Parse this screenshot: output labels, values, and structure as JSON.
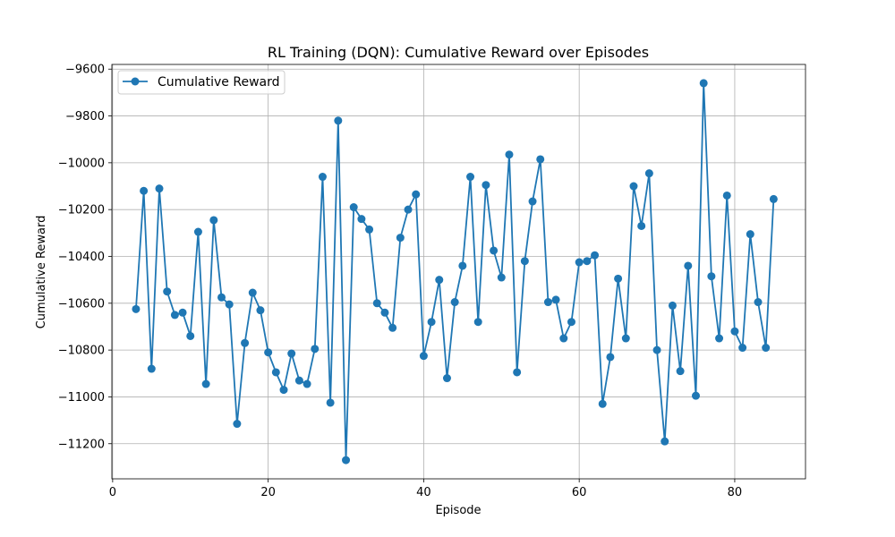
{
  "chart_data": {
    "type": "line",
    "title": "RL Training (DQN): Cumulative Reward over Episodes",
    "xlabel": "Episode",
    "ylabel": "Cumulative Reward",
    "xlim": [
      -0.1,
      89.1
    ],
    "ylim": [
      -11350,
      -9580
    ],
    "xticks": [
      0,
      20,
      40,
      60,
      80
    ],
    "yticks": [
      -11200,
      -11000,
      -10800,
      -10600,
      -10400,
      -10200,
      -10000,
      -9800,
      -9600
    ],
    "grid": true,
    "legend_position": "top-left",
    "series": [
      {
        "name": "Cumulative Reward",
        "color": "#1f77b4",
        "marker": "circle",
        "x": [
          3,
          4,
          5,
          6,
          7,
          8,
          9,
          10,
          11,
          12,
          13,
          14,
          15,
          16,
          17,
          18,
          19,
          20,
          21,
          22,
          23,
          24,
          25,
          26,
          27,
          28,
          29,
          30,
          31,
          32,
          33,
          34,
          35,
          36,
          37,
          38,
          39,
          40,
          41,
          42,
          43,
          44,
          45,
          46,
          47,
          48,
          49,
          50,
          51,
          52,
          53,
          54,
          55,
          56,
          57,
          58,
          59,
          60,
          61,
          62,
          63,
          64,
          65,
          66,
          67,
          68,
          69,
          70,
          71,
          72,
          73,
          74,
          75,
          76,
          77,
          78,
          79,
          80,
          81,
          82,
          83,
          84,
          85
        ],
        "y": [
          -10625,
          -10120,
          -10880,
          -10110,
          -10550,
          -10650,
          -10640,
          -10740,
          -10295,
          -10945,
          -10245,
          -10575,
          -10605,
          -11115,
          -10770,
          -10555,
          -10630,
          -10810,
          -10895,
          -10970,
          -10815,
          -10930,
          -10945,
          -10795,
          -10060,
          -11025,
          -9820,
          -11270,
          -10190,
          -10240,
          -10285,
          -10600,
          -10640,
          -10705,
          -10320,
          -10200,
          -10135,
          -10825,
          -10680,
          -10500,
          -10920,
          -10595,
          -10440,
          -10060,
          -10680,
          -10095,
          -10375,
          -10490,
          -9965,
          -10895,
          -10420,
          -10165,
          -9985,
          -10595,
          -10585,
          -10750,
          -10680,
          -10425,
          -10420,
          -10395,
          -11030,
          -10830,
          -10495,
          -10750,
          -10100,
          -10270,
          -10045,
          -10800,
          -11190,
          -10610,
          -10890,
          -10440,
          -10995,
          -9660,
          -10485,
          -10750,
          -10140,
          -10720,
          -10790,
          -10305,
          -10595,
          -10790,
          -10155
        ]
      }
    ]
  }
}
